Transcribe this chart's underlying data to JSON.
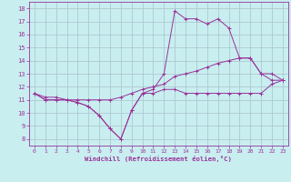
{
  "xlabel": "Windchill (Refroidissement éolien,°C)",
  "ylabel": "",
  "background_color": "#c8eef0",
  "grid_color": "#b0c8d0",
  "line_color": "#993399",
  "x_ticks": [
    0,
    1,
    2,
    3,
    4,
    5,
    6,
    7,
    8,
    9,
    10,
    11,
    12,
    13,
    14,
    15,
    16,
    17,
    18,
    19,
    20,
    21,
    22,
    23
  ],
  "y_ticks": [
    8,
    9,
    10,
    11,
    12,
    13,
    14,
    15,
    16,
    17,
    18
  ],
  "xlim": [
    -0.5,
    23.5
  ],
  "ylim": [
    7.5,
    18.5
  ],
  "series1_x": [
    0,
    1,
    2,
    3,
    4,
    5,
    6,
    7,
    8,
    9,
    10,
    11,
    12,
    13,
    14,
    15,
    16,
    17,
    18,
    19,
    20,
    21,
    22,
    23
  ],
  "series1_y": [
    11.5,
    11.0,
    11.0,
    11.0,
    10.8,
    10.5,
    9.8,
    8.8,
    8.0,
    10.2,
    11.5,
    11.5,
    11.8,
    11.8,
    11.5,
    11.5,
    11.5,
    11.5,
    11.5,
    11.5,
    11.5,
    11.5,
    12.2,
    12.5
  ],
  "series2_x": [
    0,
    1,
    2,
    3,
    4,
    5,
    6,
    7,
    8,
    9,
    10,
    11,
    12,
    13,
    14,
    15,
    16,
    17,
    18,
    19,
    20,
    21,
    22,
    23
  ],
  "series2_y": [
    11.5,
    11.0,
    11.0,
    11.0,
    10.8,
    10.5,
    9.8,
    8.8,
    8.0,
    10.2,
    11.5,
    11.8,
    13.0,
    17.8,
    17.2,
    17.2,
    16.8,
    17.2,
    16.5,
    14.2,
    14.2,
    13.0,
    13.0,
    12.5
  ],
  "series3_x": [
    0,
    1,
    2,
    3,
    4,
    5,
    6,
    7,
    8,
    9,
    10,
    11,
    12,
    13,
    14,
    15,
    16,
    17,
    18,
    19,
    20,
    21,
    22,
    23
  ],
  "series3_y": [
    11.5,
    11.2,
    11.2,
    11.0,
    11.0,
    11.0,
    11.0,
    11.0,
    11.2,
    11.5,
    11.8,
    12.0,
    12.2,
    12.8,
    13.0,
    13.2,
    13.5,
    13.8,
    14.0,
    14.2,
    14.2,
    13.0,
    12.5,
    12.5
  ]
}
